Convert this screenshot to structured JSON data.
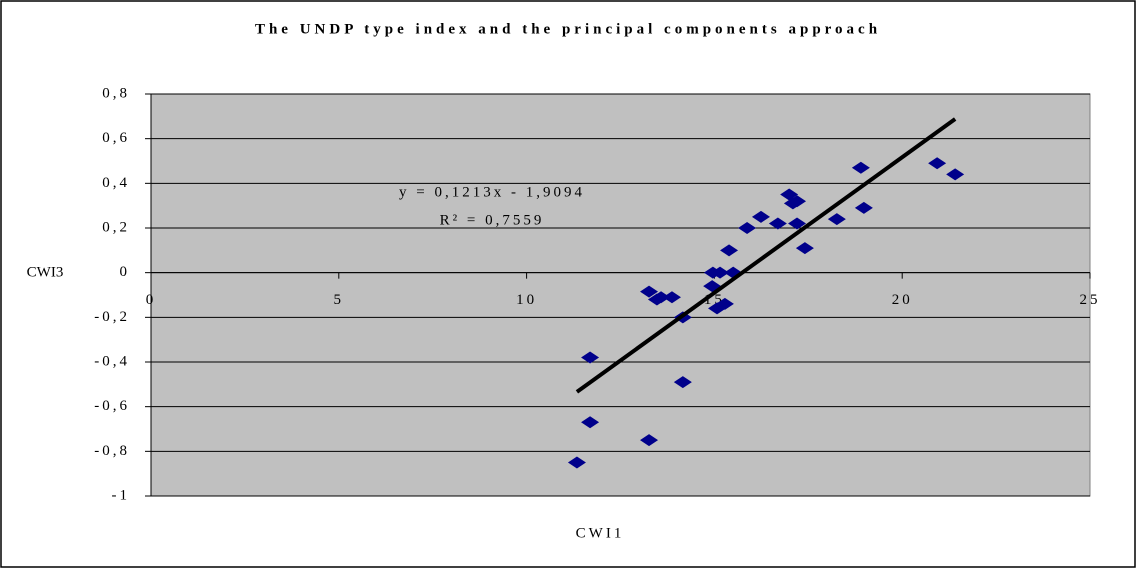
{
  "chart_data": {
    "type": "scatter",
    "title": "The UNDP type index and the principal components approach",
    "xlabel": "CWI1",
    "ylabel": "CWI3",
    "x": [
      11.34,
      11.69,
      11.69,
      13.26,
      13.26,
      13.47,
      13.58,
      13.87,
      14.16,
      14.16,
      14.94,
      14.96,
      15.07,
      15.15,
      15.28,
      15.39,
      15.5,
      15.87,
      16.24,
      16.69,
      16.99,
      17.09,
      17.2,
      17.2,
      17.41,
      18.26,
      18.9,
      18.98,
      20.93,
      21.41
    ],
    "values": [
      -0.85,
      -0.38,
      -0.67,
      -0.75,
      -0.085,
      -0.12,
      -0.11,
      -0.11,
      -0.2,
      -0.49,
      -0.06,
      0.0,
      -0.16,
      0.0,
      -0.14,
      0.1,
      0.0,
      0.2,
      0.25,
      0.22,
      0.35,
      0.31,
      0.32,
      0.22,
      0.11,
      0.24,
      0.47,
      0.29,
      0.49,
      0.44
    ],
    "color": "#00008b",
    "trendline": {
      "x": [
        11.34,
        21.41
      ],
      "values": [
        -0.534,
        0.688
      ],
      "color": "#000000"
    },
    "equation": "y = 0,1213x - 1,9094",
    "r_squared": "R² = 0,7559",
    "xlim": [
      0,
      25
    ],
    "xticks": [
      0,
      5,
      10,
      15,
      20,
      25
    ],
    "ylim": [
      -1,
      0.8
    ],
    "yticks": [
      -1,
      {
        "value": -0.8,
        "label": "-0,8"
      },
      {
        "value": -0.6,
        "label": "-0,6"
      },
      {
        "value": -0.4,
        "label": "-0,4"
      },
      {
        "value": -0.2,
        "label": "-0,2"
      },
      0,
      {
        "value": 0.2,
        "label": "0,2"
      },
      {
        "value": 0.4,
        "label": "0,4"
      },
      {
        "value": 0.6,
        "label": "0,6"
      },
      {
        "value": 0.8,
        "label": "0,8"
      }
    ],
    "grid": true
  }
}
